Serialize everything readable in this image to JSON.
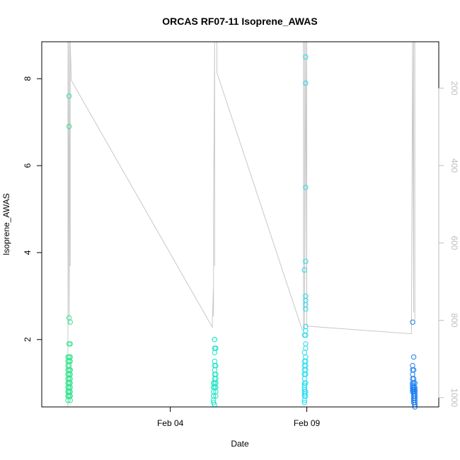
{
  "chart_data": {
    "type": "scatter",
    "title": "ORCAS RF07-11 Isoprene_AWAS",
    "xlabel": "Date",
    "ylabel": "Isoprene_AWAS",
    "x_tick_labels": [
      "Feb 04",
      "Feb 09"
    ],
    "x_ticks": [
      "2016-02-04",
      "2016-02-09"
    ],
    "xlim": [
      "2016-01-30T07:00",
      "2016-02-13T20:00"
    ],
    "ylim": [
      0.45,
      8.85
    ],
    "y_ticks": [
      2,
      4,
      6,
      8
    ],
    "y2_ticks": [
      200,
      400,
      600,
      800,
      1000
    ],
    "y2lim": [
      1024,
      80
    ],
    "y2_reversed": true,
    "grid": false,
    "series": [
      {
        "color": "#2fe38a",
        "x": [
          "2016-01-31T06:00",
          "2016-01-31T06:00",
          "2016-01-31T06:00",
          "2016-01-31T06:00",
          "2016-01-31T06:00",
          "2016-01-31T06:00",
          "2016-01-31T06:00",
          "2016-01-31T06:00",
          "2016-01-31T06:00",
          "2016-01-31T06:00",
          "2016-01-31T06:00",
          "2016-01-31T06:00",
          "2016-01-31T06:00",
          "2016-01-31T06:00",
          "2016-01-31T06:00",
          "2016-01-31T07:00",
          "2016-01-31T07:00",
          "2016-01-31T07:00",
          "2016-01-31T07:00",
          "2016-01-31T07:00",
          "2016-01-31T07:00",
          "2016-01-31T07:00",
          "2016-01-31T07:00",
          "2016-01-31T07:00",
          "2016-01-31T07:00",
          "2016-01-31T07:00",
          "2016-01-31T07:00",
          "2016-01-31T07:00",
          "2016-01-31T07:00",
          "2016-01-31T07:00",
          "2016-01-31T07:00",
          "2016-01-31T08:00",
          "2016-01-31T08:00",
          "2016-01-31T08:00",
          "2016-01-31T08:00",
          "2016-01-31T08:00",
          "2016-01-31T08:00",
          "2016-01-31T08:00",
          "2016-01-31T08:00",
          "2016-01-31T08:00",
          "2016-01-31T08:00",
          "2016-01-31T08:00",
          "2016-01-31T08:00",
          "2016-01-31T08:00",
          "2016-01-31T08:00"
        ],
        "y": [
          1.6,
          1.5,
          1.4,
          1.3,
          1.2,
          1.1,
          1.0,
          1.0,
          0.9,
          0.9,
          0.8,
          0.8,
          0.7,
          0.7,
          0.6,
          1.9,
          1.6,
          1.5,
          1.4,
          1.3,
          1.2,
          1.1,
          1.0,
          1.0,
          0.9,
          0.8,
          0.8,
          0.7,
          7.6,
          6.9,
          2.5,
          2.4,
          1.9,
          1.6,
          1.5,
          1.3,
          1.2,
          1.1,
          1.0,
          0.9,
          0.8,
          0.7,
          0.7,
          0.6,
          1.3
        ]
      },
      {
        "color": "#1de3c4",
        "x": [
          "2016-02-05T14:00",
          "2016-02-05T14:00",
          "2016-02-05T14:00",
          "2016-02-05T14:00",
          "2016-02-05T14:00",
          "2016-02-05T14:00",
          "2016-02-05T14:00",
          "2016-02-05T15:00",
          "2016-02-05T15:00",
          "2016-02-05T15:00",
          "2016-02-05T15:00",
          "2016-02-05T15:00",
          "2016-02-05T15:00",
          "2016-02-05T15:00",
          "2016-02-05T15:00",
          "2016-02-05T15:00",
          "2016-02-05T15:00",
          "2016-02-05T15:00",
          "2016-02-05T15:00",
          "2016-02-05T16:00",
          "2016-02-05T16:00",
          "2016-02-05T16:00",
          "2016-02-05T16:00",
          "2016-02-05T16:00",
          "2016-02-05T16:00",
          "2016-02-05T16:00",
          "2016-02-05T16:00",
          "2016-02-05T16:00",
          "2016-02-05T16:00"
        ],
        "y": [
          1.0,
          0.9,
          0.8,
          0.7,
          0.7,
          0.6,
          0.55,
          2.0,
          2.0,
          1.8,
          1.7,
          1.5,
          1.4,
          1.3,
          1.2,
          1.1,
          1.0,
          0.9,
          0.5,
          1.8,
          1.8,
          1.4,
          1.2,
          1.1,
          1.0,
          1.0,
          0.9,
          0.8,
          0.7
        ]
      },
      {
        "color": "#22dcef",
        "x": [
          "2016-02-08T22:00",
          "2016-02-08T22:00",
          "2016-02-08T22:00",
          "2016-02-08T22:00",
          "2016-02-08T22:00",
          "2016-02-08T22:00",
          "2016-02-08T22:00",
          "2016-02-08T22:00",
          "2016-02-08T22:00",
          "2016-02-08T22:00",
          "2016-02-08T22:00",
          "2016-02-08T22:00",
          "2016-02-08T22:00",
          "2016-02-08T22:00",
          "2016-02-08T22:00",
          "2016-02-08T22:00",
          "2016-02-08T22:00",
          "2016-02-08T22:00",
          "2016-02-08T23:00",
          "2016-02-08T23:00",
          "2016-02-08T23:00",
          "2016-02-08T23:00",
          "2016-02-08T23:00",
          "2016-02-08T23:00",
          "2016-02-08T23:00",
          "2016-02-08T23:00",
          "2016-02-08T23:00",
          "2016-02-08T23:00",
          "2016-02-08T23:00",
          "2016-02-08T23:00",
          "2016-02-08T23:00",
          "2016-02-08T23:00",
          "2016-02-08T23:00",
          "2016-02-08T23:00",
          "2016-02-08T23:00",
          "2016-02-08T23:00",
          "2016-02-08T23:00",
          "2016-02-08T23:00",
          "2016-02-08T23:00"
        ],
        "y": [
          3.6,
          2.1,
          1.7,
          1.5,
          1.4,
          1.3,
          1.2,
          1.2,
          1.1,
          1.0,
          0.95,
          0.9,
          0.85,
          0.8,
          0.75,
          0.7,
          0.6,
          0.55,
          8.5,
          7.9,
          5.5,
          3.8,
          3.0,
          2.9,
          2.8,
          2.7,
          2.3,
          2.2,
          2.1,
          1.9,
          1.8,
          1.6,
          1.5,
          1.4,
          1.3,
          1.2,
          1.0,
          0.8,
          0.7
        ]
      },
      {
        "color": "#1c7ff0",
        "x": [
          "2016-02-12T21:00",
          "2016-02-12T21:00",
          "2016-02-12T21:00",
          "2016-02-12T21:00",
          "2016-02-12T21:00",
          "2016-02-12T21:00",
          "2016-02-12T21:00",
          "2016-02-12T21:00",
          "2016-02-12T21:00",
          "2016-02-12T21:00",
          "2016-02-12T21:00",
          "2016-02-12T22:00",
          "2016-02-12T22:00",
          "2016-02-12T22:00",
          "2016-02-12T22:00",
          "2016-02-12T22:00",
          "2016-02-12T22:00",
          "2016-02-12T22:00",
          "2016-02-12T22:00",
          "2016-02-12T22:00",
          "2016-02-12T22:00",
          "2016-02-12T22:00",
          "2016-02-12T22:00",
          "2016-02-12T22:00",
          "2016-02-12T23:00",
          "2016-02-12T23:00",
          "2016-02-12T23:00",
          "2016-02-12T23:00",
          "2016-02-12T23:00",
          "2016-02-12T23:00",
          "2016-02-12T23:00",
          "2016-02-12T23:00",
          "2016-02-12T23:00",
          "2016-02-12T23:00",
          "2016-02-12T23:00",
          "2016-02-12T23:00",
          "2016-02-12T23:00",
          "2016-02-12T23:00"
        ],
        "y": [
          2.4,
          1.4,
          1.3,
          1.2,
          1.1,
          1.0,
          1.0,
          0.95,
          0.9,
          0.85,
          0.8,
          1.6,
          1.3,
          1.1,
          1.0,
          0.9,
          0.9,
          0.85,
          0.8,
          0.75,
          0.7,
          0.65,
          0.6,
          0.55,
          1.0,
          0.9,
          0.85,
          0.8,
          0.8,
          0.75,
          0.7,
          0.7,
          0.65,
          0.6,
          0.55,
          0.5,
          0.5,
          0.45
        ]
      }
    ],
    "altitude_trace": {
      "color": "#c8c8c8",
      "x": [
        "2016-01-31T06:00",
        "2016-01-31T06:00",
        "2016-01-31T06:00",
        "2016-01-31T07:00",
        "2016-01-31T07:00",
        "2016-01-31T07:00",
        "2016-01-31T07:00",
        "2016-01-31T08:00",
        "2016-01-31T08:00",
        "2016-01-31T08:00",
        "2016-01-31T08:00",
        "2016-01-31T08:00",
        "2016-01-31T08:00",
        "2016-01-31T08:00",
        "2016-01-31T09:00",
        "2016-02-05T13:00",
        "2016-02-05T13:00",
        "2016-02-05T14:00",
        "2016-02-05T14:00",
        "2016-02-05T14:00",
        "2016-02-05T15:00",
        "2016-02-05T15:00",
        "2016-02-05T15:00",
        "2016-02-05T15:00",
        "2016-02-05T16:00",
        "2016-02-05T16:00",
        "2016-02-05T17:00",
        "2016-02-05T17:00",
        "2016-02-08T20:00",
        "2016-02-08T21:00",
        "2016-02-08T21:00",
        "2016-02-08T22:00",
        "2016-02-08T22:00",
        "2016-02-08T23:00",
        "2016-02-08T23:00",
        "2016-02-09T00:00",
        "2016-02-09T00:00",
        "2016-02-09T00:00",
        "2016-02-12T20:00",
        "2016-02-12T20:00",
        "2016-02-12T21:00",
        "2016-02-12T21:00",
        "2016-02-12T22:00",
        "2016-02-12T22:00",
        "2016-02-12T23:00",
        "2016-02-12T23:00",
        "2016-02-12T23:00"
      ],
      "y": [
        1024,
        80,
        80,
        800,
        80,
        80,
        810,
        80,
        80,
        140,
        80,
        80,
        660,
        80,
        180,
        818,
        800,
        710,
        790,
        550,
        80,
        80,
        660,
        80,
        80,
        80,
        80,
        160,
        825,
        825,
        80,
        80,
        820,
        80,
        80,
        800,
        80,
        815,
        835,
        825,
        80,
        80,
        780,
        80,
        80,
        810,
        80
      ]
    }
  }
}
